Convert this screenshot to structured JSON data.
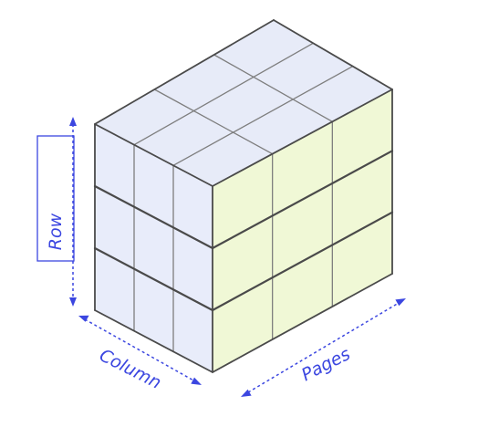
{
  "diagram": {
    "labels": {
      "row": "Row",
      "column": "Column",
      "pages": "Pages"
    },
    "colors": {
      "front_face": "#e8ecfa",
      "top_face": "#e7ebf8",
      "side_face": "#f0f8d6",
      "grid_line": "#7e7e7e",
      "outline": "#4a4a4a",
      "axis": "#3b46e0"
    }
  }
}
